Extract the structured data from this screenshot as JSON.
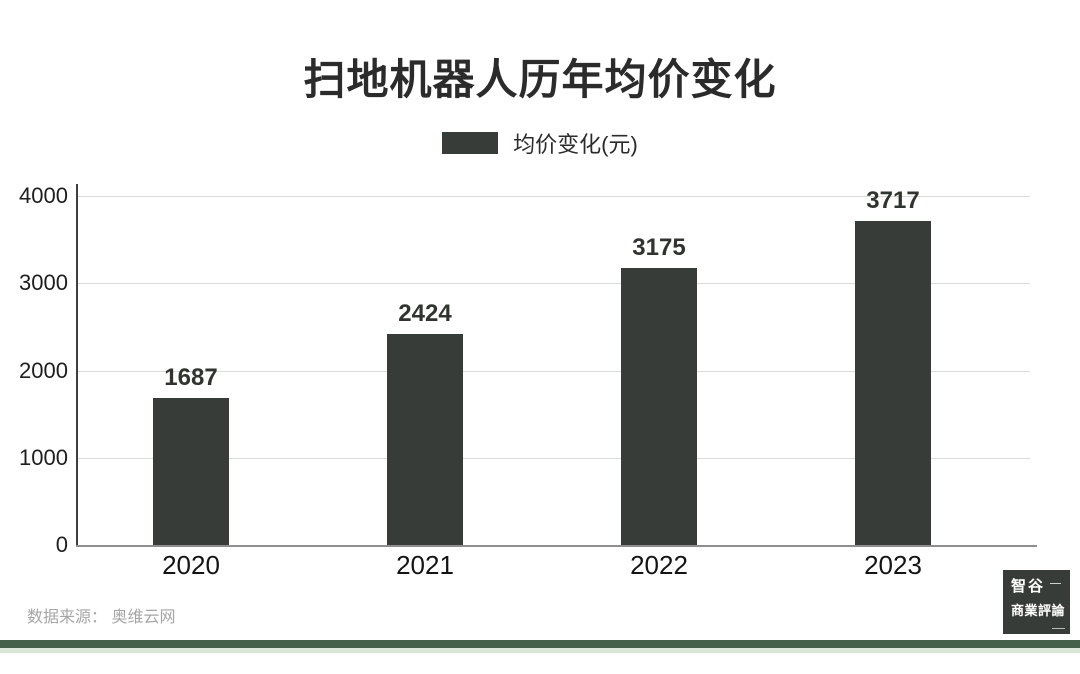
{
  "chart_data": {
    "type": "bar",
    "title": "扫地机器人历年均价变化",
    "legend": {
      "label": "均价变化(元)",
      "position": "top-center"
    },
    "categories": [
      "2020",
      "2021",
      "2022",
      "2023"
    ],
    "values": [
      1687,
      2424,
      3175,
      3717
    ],
    "series": [
      {
        "name": "均价变化(元)",
        "values": [
          1687,
          2424,
          3175,
          3717
        ]
      }
    ],
    "xlabel": "",
    "ylabel": "",
    "ylim": [
      0,
      4000
    ],
    "yticks": [
      0,
      1000,
      2000,
      3000,
      4000
    ],
    "grid": true,
    "bar_color": "#383c38",
    "value_label_color": "#30342f"
  },
  "footer": {
    "source_text": "数据来源： 奥维云网"
  },
  "brand": {
    "line1": "智谷",
    "line2": "商業評論",
    "bg_color": "#383c38",
    "text_color": "#ffffff"
  },
  "colors": {
    "background": "#ffffff",
    "title_text": "#2b2b2b",
    "gridline": "#dadada",
    "axis_left": "#3e3e3e",
    "axis_bottom": "#8e8e8e",
    "source_text": "#a6a6a6",
    "divider_dark_green": "#45604a",
    "divider_light_green": "#d8e7d6"
  }
}
